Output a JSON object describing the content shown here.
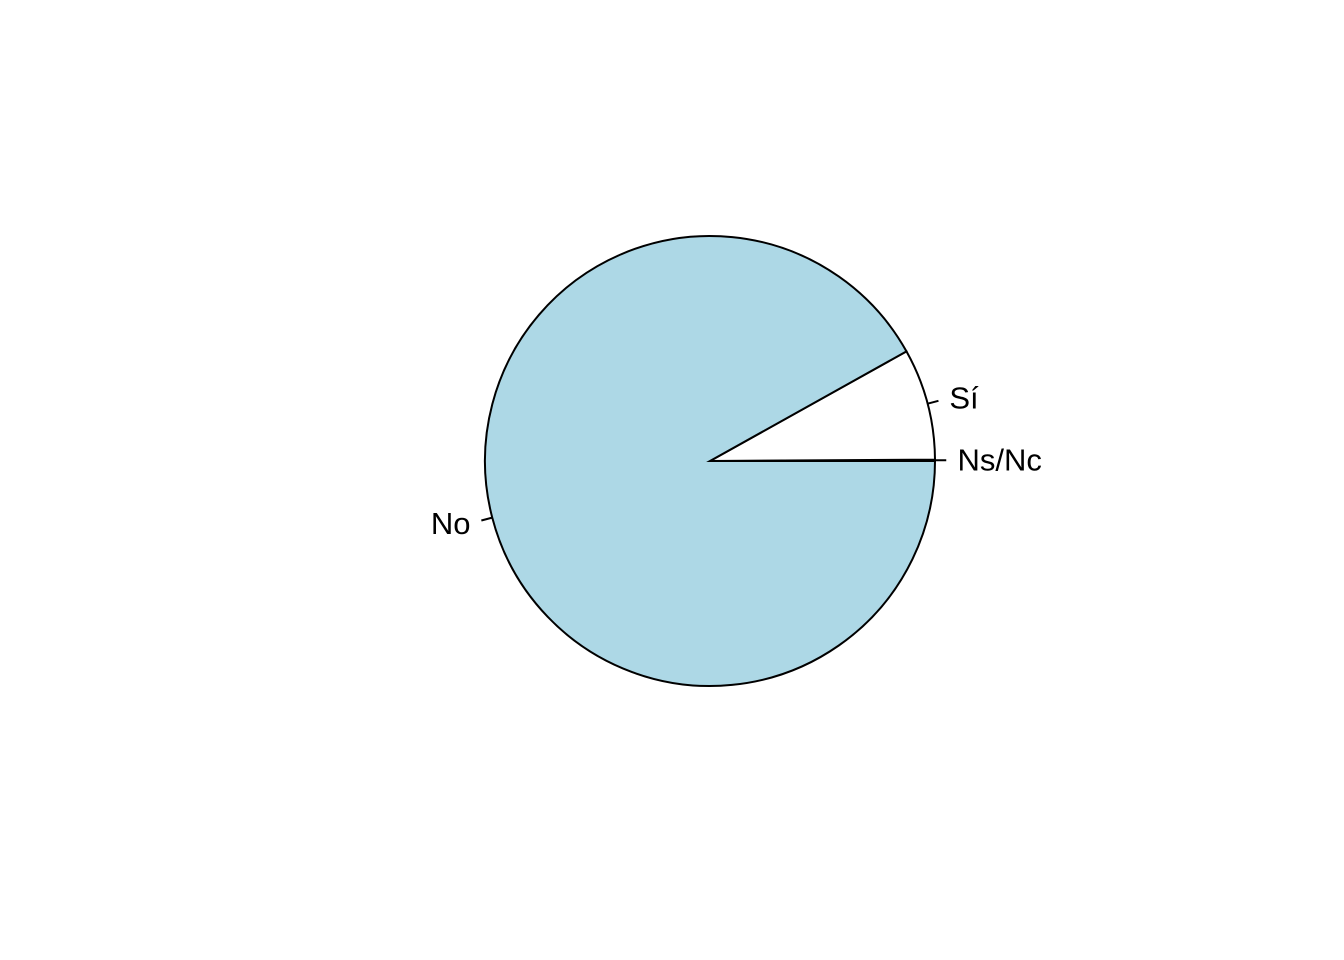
{
  "chart_data": {
    "type": "pie",
    "title": "",
    "categories": [
      "Ns/Nc",
      "Sí",
      "No"
    ],
    "values": [
      0.1,
      8.0,
      91.9
    ],
    "colors": [
      "#FFFFFF",
      "#FFFFFF",
      "#ADD8E6"
    ],
    "start_angle_deg": 0,
    "direction": "counterclockwise",
    "legend": "none",
    "labels": [
      "Ns/Nc",
      "Sí",
      "No"
    ]
  }
}
